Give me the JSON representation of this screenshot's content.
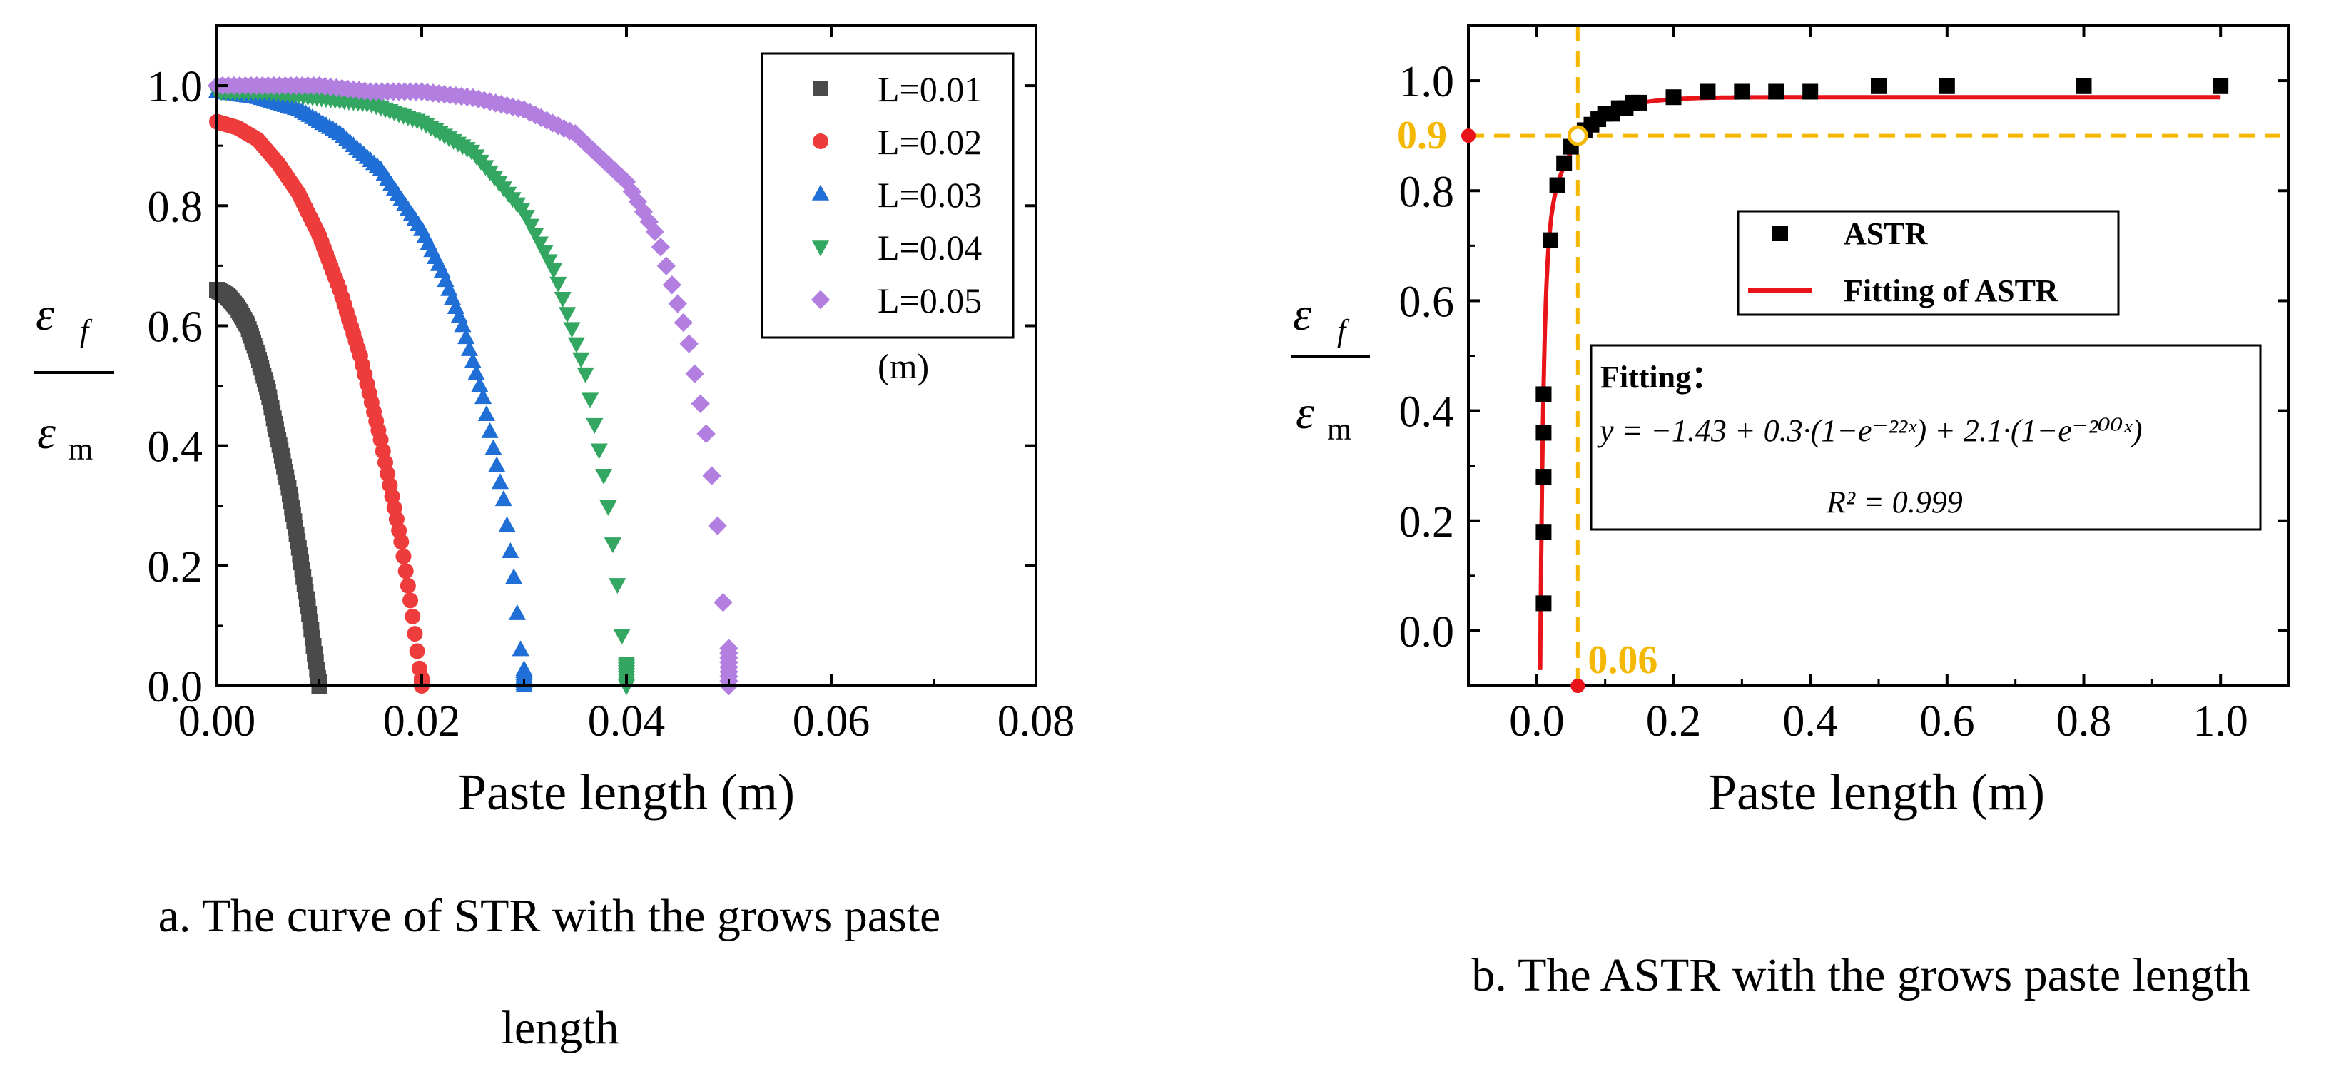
{
  "figure": {
    "panels": [
      "a",
      "b"
    ]
  },
  "chart_data": [
    {
      "panel": "a",
      "type": "scatter",
      "caption_line1": "a. The curve of STR with the grows paste",
      "caption_line2": "length",
      "xlabel": "Paste length (m)",
      "ylabel_num": "ε",
      "ylabel_num_sub": "f",
      "ylabel_den": "ε",
      "ylabel_den_sub": "m",
      "xlim": [
        0,
        0.08
      ],
      "ylim": [
        0,
        1.1
      ],
      "xticks": [
        0.0,
        0.02,
        0.04,
        0.06,
        0.08
      ],
      "xtick_labels": [
        "0.00",
        "0.02",
        "0.04",
        "0.06",
        "0.08"
      ],
      "yticks": [
        0.0,
        0.2,
        0.4,
        0.6,
        0.8,
        1.0
      ],
      "ytick_labels": [
        "0.0",
        "0.2",
        "0.4",
        "0.6",
        "0.8",
        "1.0"
      ],
      "legend_position": "top-right",
      "legend_note": "(m)",
      "grid": false,
      "series": [
        {
          "name": "L=0.01",
          "marker": "square",
          "color": "#4a4a4a",
          "x": [
            0.0,
            0.001,
            0.002,
            0.003,
            0.004,
            0.005,
            0.006,
            0.007,
            0.008,
            0.009,
            0.0095,
            0.01
          ],
          "y": [
            0.66,
            0.65,
            0.63,
            0.6,
            0.55,
            0.49,
            0.41,
            0.33,
            0.23,
            0.12,
            0.06,
            0.0
          ]
        },
        {
          "name": "L=0.02",
          "marker": "circle",
          "color": "#ee3b3b",
          "x": [
            0.0,
            0.002,
            0.004,
            0.006,
            0.008,
            0.01,
            0.012,
            0.014,
            0.016,
            0.018,
            0.019,
            0.02
          ],
          "y": [
            0.94,
            0.93,
            0.91,
            0.87,
            0.82,
            0.75,
            0.66,
            0.55,
            0.41,
            0.24,
            0.13,
            0.0
          ]
        },
        {
          "name": "L=0.03",
          "marker": "triangle-up",
          "color": "#1f6fd6",
          "x": [
            0.0,
            0.004,
            0.008,
            0.012,
            0.016,
            0.02,
            0.022,
            0.024,
            0.026,
            0.028,
            0.029,
            0.03
          ],
          "y": [
            0.99,
            0.98,
            0.96,
            0.92,
            0.86,
            0.76,
            0.69,
            0.6,
            0.48,
            0.31,
            0.18,
            0.0
          ]
        },
        {
          "name": "L=0.04",
          "marker": "triangle-down",
          "color": "#33a661",
          "x": [
            0.0,
            0.005,
            0.01,
            0.015,
            0.02,
            0.025,
            0.03,
            0.033,
            0.036,
            0.038,
            0.039,
            0.04
          ],
          "y": [
            0.99,
            0.99,
            0.98,
            0.97,
            0.94,
            0.89,
            0.79,
            0.69,
            0.52,
            0.33,
            0.19,
            0.0
          ]
        },
        {
          "name": "L=0.05",
          "marker": "diamond",
          "color": "#b27fe0",
          "x": [
            0.0,
            0.005,
            0.01,
            0.015,
            0.02,
            0.025,
            0.03,
            0.035,
            0.04,
            0.043,
            0.046,
            0.048,
            0.049,
            0.05
          ],
          "y": [
            1.0,
            1.0,
            1.0,
            0.99,
            0.99,
            0.98,
            0.96,
            0.92,
            0.84,
            0.75,
            0.58,
            0.4,
            0.25,
            0.0
          ]
        }
      ]
    },
    {
      "panel": "b",
      "type": "scatter",
      "caption": "b. The ASTR with the grows paste length",
      "xlabel": "Paste length (m)",
      "ylabel_num": "ε",
      "ylabel_num_sub": "f",
      "ylabel_den": "ε",
      "ylabel_den_sub": "m",
      "xlim": [
        -0.1,
        1.1
      ],
      "ylim": [
        -0.1,
        1.1
      ],
      "xticks": [
        0.0,
        0.2,
        0.4,
        0.6,
        0.8,
        1.0
      ],
      "xtick_labels": [
        "0.0",
        "0.2",
        "0.4",
        "0.6",
        "0.8",
        "1.0"
      ],
      "yticks": [
        0.0,
        0.2,
        0.4,
        0.6,
        0.8,
        1.0
      ],
      "ytick_labels": [
        "0.0",
        "0.2",
        "0.4",
        "0.6",
        "0.8",
        "1.0"
      ],
      "grid": false,
      "legend_position": "center",
      "series": [
        {
          "name": "ASTR",
          "marker": "square",
          "color": "#000000",
          "x": [
            0.01,
            0.01,
            0.01,
            0.01,
            0.01,
            0.01,
            0.02,
            0.03,
            0.04,
            0.05,
            0.06,
            0.07,
            0.08,
            0.09,
            0.1,
            0.11,
            0.12,
            0.13,
            0.14,
            0.15,
            0.2,
            0.25,
            0.3,
            0.35,
            0.4,
            0.5,
            0.6,
            0.8,
            1.0
          ],
          "y": [
            0.05,
            0.18,
            0.28,
            0.36,
            0.43,
            0.43,
            0.71,
            0.81,
            0.85,
            0.88,
            0.9,
            0.91,
            0.92,
            0.93,
            0.94,
            0.94,
            0.95,
            0.95,
            0.96,
            0.96,
            0.97,
            0.98,
            0.98,
            0.98,
            0.98,
            0.99,
            0.99,
            0.99,
            0.99
          ]
        },
        {
          "name": "Fitting of ASTR",
          "line": true,
          "color": "#e8141a",
          "formula": "y = -1.43 + 0.3(1-e^(-22x)) + 2.1(1-e^(-200x))"
        }
      ],
      "fit_box": {
        "title": "Fitting：",
        "equation": "y = −1.43 + 0.3·(1−e⁻²²ˣ) + 2.1·(1−e⁻²⁰⁰ˣ)",
        "r2": "R² = 0.999"
      },
      "annotations": [
        {
          "text": "0.9",
          "axis": "y",
          "value": 0.9,
          "color": "#f5b800"
        },
        {
          "text": "0.06",
          "axis": "x",
          "value": 0.06,
          "color": "#f5b800"
        }
      ]
    }
  ]
}
